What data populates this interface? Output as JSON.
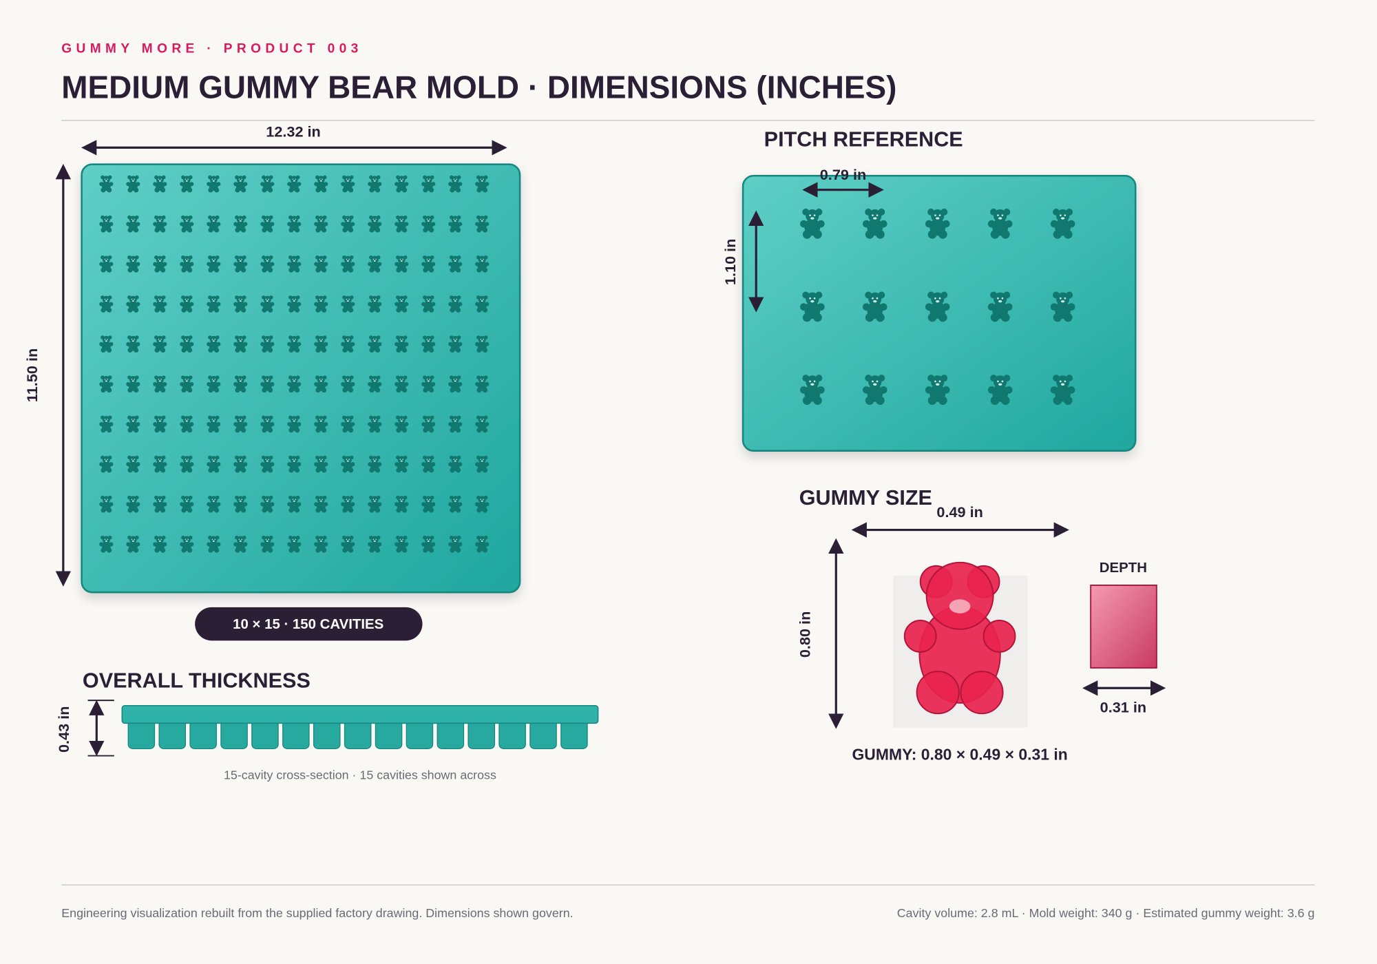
{
  "header": {
    "eyebrow": "GUMMY MORE · PRODUCT 003",
    "title": "MEDIUM GUMMY BEAR MOLD · DIMENSIONS (INCHES)"
  },
  "overview": {
    "width": "12.32 in",
    "height": "11.50 in",
    "badge": "10 × 15 · 150 CAVITIES"
  },
  "thickness": {
    "title": "OVERALL THICKNESS",
    "height": "0.43 in",
    "caption": "15-cavity cross-section · 15 cavities shown across"
  },
  "pitch": {
    "title": "PITCH REFERENCE",
    "horizontal": "0.79 in",
    "vertical": "1.10 in"
  },
  "gummy_size": {
    "title": "GUMMY SIZE",
    "width": "0.49 in",
    "height": "0.80 in",
    "depth_label": "DEPTH",
    "depth": "0.31 in",
    "summary": "GUMMY: 0.80 × 0.49 × 0.31 in"
  },
  "footer": {
    "note": "Engineering visualization rebuilt from the supplied factory drawing. Dimensions shown govern.",
    "specs": "Cavity volume: 2.8 mL · Mold weight: 340 g · Estimated gummy weight: 3.6 g"
  }
}
